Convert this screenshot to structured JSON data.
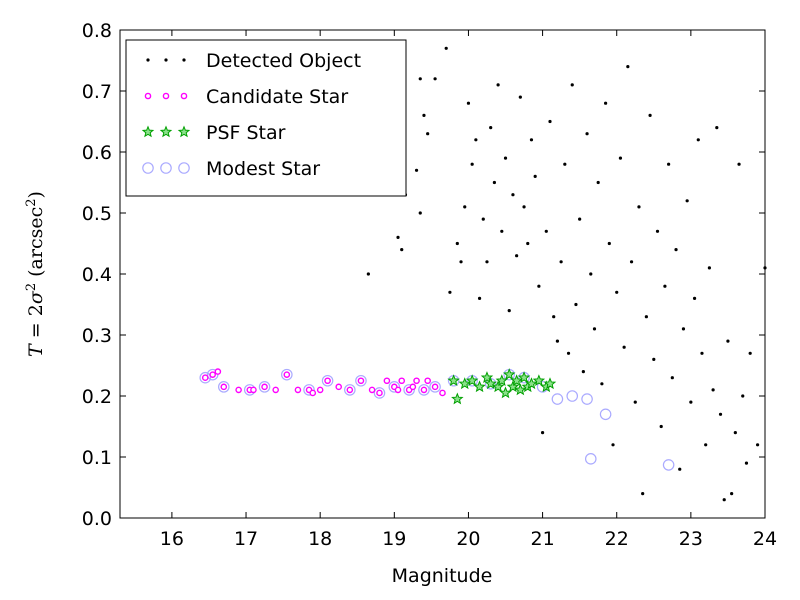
{
  "chart_data": {
    "type": "scatter",
    "xlabel": "Magnitude",
    "ylabel_parts": [
      "T",
      " = 2",
      "σ",
      "2",
      " (arcsec",
      "2",
      ")"
    ],
    "xlim": [
      15.3,
      24.0
    ],
    "ylim": [
      0.0,
      0.8
    ],
    "xticks": [
      16,
      17,
      18,
      19,
      20,
      21,
      22,
      23,
      24
    ],
    "yticks": [
      0.0,
      0.1,
      0.2,
      0.3,
      0.4,
      0.5,
      0.6,
      0.7,
      0.8
    ],
    "xtick_labels": [
      "16",
      "17",
      "18",
      "19",
      "20",
      "21",
      "22",
      "23",
      "24"
    ],
    "ytick_labels": [
      "0.0",
      "0.1",
      "0.2",
      "0.3",
      "0.4",
      "0.5",
      "0.6",
      "0.7",
      "0.8"
    ],
    "grid": false,
    "legend_position": "top-left",
    "series": [
      {
        "name": "Detected Object",
        "marker": "dot",
        "color": "#000000",
        "points": [
          [
            18.65,
            0.4
          ],
          [
            19.05,
            0.46
          ],
          [
            19.1,
            0.44
          ],
          [
            19.15,
            0.53
          ],
          [
            19.3,
            0.57
          ],
          [
            19.35,
            0.5
          ],
          [
            19.4,
            0.66
          ],
          [
            19.45,
            0.63
          ],
          [
            19.35,
            0.72
          ],
          [
            19.55,
            0.72
          ],
          [
            19.7,
            0.77
          ],
          [
            19.75,
            0.37
          ],
          [
            19.85,
            0.45
          ],
          [
            19.9,
            0.42
          ],
          [
            19.95,
            0.51
          ],
          [
            20.0,
            0.68
          ],
          [
            20.05,
            0.58
          ],
          [
            20.1,
            0.62
          ],
          [
            20.15,
            0.36
          ],
          [
            20.2,
            0.49
          ],
          [
            20.25,
            0.42
          ],
          [
            20.3,
            0.64
          ],
          [
            20.35,
            0.55
          ],
          [
            20.4,
            0.71
          ],
          [
            20.45,
            0.47
          ],
          [
            20.5,
            0.59
          ],
          [
            20.55,
            0.34
          ],
          [
            20.6,
            0.53
          ],
          [
            20.65,
            0.43
          ],
          [
            20.7,
            0.69
          ],
          [
            20.75,
            0.51
          ],
          [
            20.8,
            0.45
          ],
          [
            20.85,
            0.62
          ],
          [
            20.9,
            0.56
          ],
          [
            20.95,
            0.38
          ],
          [
            21.0,
            0.14
          ],
          [
            21.05,
            0.47
          ],
          [
            21.1,
            0.65
          ],
          [
            21.15,
            0.33
          ],
          [
            21.2,
            0.29
          ],
          [
            21.25,
            0.42
          ],
          [
            21.3,
            0.58
          ],
          [
            21.35,
            0.27
          ],
          [
            21.4,
            0.71
          ],
          [
            21.45,
            0.35
          ],
          [
            21.5,
            0.49
          ],
          [
            21.55,
            0.24
          ],
          [
            21.6,
            0.63
          ],
          [
            21.65,
            0.4
          ],
          [
            21.7,
            0.31
          ],
          [
            21.75,
            0.55
          ],
          [
            21.8,
            0.22
          ],
          [
            21.85,
            0.68
          ],
          [
            21.9,
            0.45
          ],
          [
            21.95,
            0.12
          ],
          [
            22.0,
            0.37
          ],
          [
            22.05,
            0.59
          ],
          [
            22.1,
            0.28
          ],
          [
            22.15,
            0.74
          ],
          [
            22.2,
            0.42
          ],
          [
            22.25,
            0.19
          ],
          [
            22.3,
            0.51
          ],
          [
            22.35,
            0.04
          ],
          [
            22.4,
            0.33
          ],
          [
            22.45,
            0.66
          ],
          [
            22.5,
            0.26
          ],
          [
            22.55,
            0.47
          ],
          [
            22.6,
            0.15
          ],
          [
            22.65,
            0.38
          ],
          [
            22.7,
            0.58
          ],
          [
            22.75,
            0.23
          ],
          [
            22.8,
            0.44
          ],
          [
            22.85,
            0.08
          ],
          [
            22.9,
            0.31
          ],
          [
            22.95,
            0.52
          ],
          [
            23.0,
            0.19
          ],
          [
            23.05,
            0.36
          ],
          [
            23.1,
            0.62
          ],
          [
            23.15,
            0.27
          ],
          [
            23.2,
            0.12
          ],
          [
            23.25,
            0.41
          ],
          [
            23.3,
            0.21
          ],
          [
            23.35,
            0.64
          ],
          [
            23.4,
            0.17
          ],
          [
            23.45,
            0.03
          ],
          [
            23.5,
            0.29
          ],
          [
            23.55,
            0.04
          ],
          [
            23.6,
            0.14
          ],
          [
            23.65,
            0.58
          ],
          [
            23.7,
            0.2
          ],
          [
            23.75,
            0.09
          ],
          [
            23.8,
            0.27
          ],
          [
            23.9,
            0.12
          ],
          [
            24.0,
            0.41
          ]
        ]
      },
      {
        "name": "Candidate Star",
        "marker": "circle",
        "color": "#ff00ff",
        "points": [
          [
            16.45,
            0.23
          ],
          [
            16.55,
            0.235
          ],
          [
            16.62,
            0.24
          ],
          [
            16.7,
            0.215
          ],
          [
            16.9,
            0.21
          ],
          [
            17.05,
            0.21
          ],
          [
            17.1,
            0.21
          ],
          [
            17.25,
            0.215
          ],
          [
            17.4,
            0.21
          ],
          [
            17.55,
            0.235
          ],
          [
            17.7,
            0.21
          ],
          [
            17.85,
            0.21
          ],
          [
            17.9,
            0.205
          ],
          [
            18.0,
            0.21
          ],
          [
            18.1,
            0.225
          ],
          [
            18.25,
            0.215
          ],
          [
            18.4,
            0.21
          ],
          [
            18.55,
            0.225
          ],
          [
            18.7,
            0.21
          ],
          [
            18.8,
            0.205
          ],
          [
            18.9,
            0.225
          ],
          [
            19.0,
            0.215
          ],
          [
            19.05,
            0.21
          ],
          [
            19.1,
            0.225
          ],
          [
            19.2,
            0.21
          ],
          [
            19.25,
            0.215
          ],
          [
            19.3,
            0.225
          ],
          [
            19.4,
            0.21
          ],
          [
            19.45,
            0.225
          ],
          [
            19.55,
            0.215
          ],
          [
            19.65,
            0.205
          ]
        ]
      },
      {
        "name": "PSF Star",
        "marker": "star",
        "color": "#00a000",
        "points": [
          [
            19.8,
            0.225
          ],
          [
            19.85,
            0.195
          ],
          [
            19.95,
            0.22
          ],
          [
            20.05,
            0.225
          ],
          [
            20.15,
            0.215
          ],
          [
            20.25,
            0.23
          ],
          [
            20.3,
            0.22
          ],
          [
            20.4,
            0.215
          ],
          [
            20.45,
            0.225
          ],
          [
            20.5,
            0.205
          ],
          [
            20.55,
            0.235
          ],
          [
            20.6,
            0.215
          ],
          [
            20.65,
            0.225
          ],
          [
            20.7,
            0.21
          ],
          [
            20.75,
            0.23
          ],
          [
            20.8,
            0.215
          ],
          [
            20.85,
            0.22
          ],
          [
            20.95,
            0.225
          ],
          [
            21.05,
            0.215
          ],
          [
            21.1,
            0.22
          ]
        ]
      },
      {
        "name": "Modest Star",
        "marker": "open-circle",
        "color": "#aaaaff",
        "points": [
          [
            16.45,
            0.23
          ],
          [
            16.55,
            0.235
          ],
          [
            16.7,
            0.215
          ],
          [
            17.05,
            0.21
          ],
          [
            17.25,
            0.215
          ],
          [
            17.55,
            0.235
          ],
          [
            17.85,
            0.21
          ],
          [
            18.1,
            0.225
          ],
          [
            18.4,
            0.21
          ],
          [
            18.55,
            0.225
          ],
          [
            18.8,
            0.205
          ],
          [
            19.0,
            0.215
          ],
          [
            19.2,
            0.21
          ],
          [
            19.4,
            0.21
          ],
          [
            19.55,
            0.215
          ],
          [
            19.8,
            0.225
          ],
          [
            20.05,
            0.225
          ],
          [
            20.3,
            0.22
          ],
          [
            20.55,
            0.235
          ],
          [
            20.75,
            0.23
          ],
          [
            21.0,
            0.215
          ],
          [
            21.2,
            0.195
          ],
          [
            21.4,
            0.2
          ],
          [
            21.6,
            0.195
          ],
          [
            21.65,
            0.097
          ],
          [
            21.85,
            0.17
          ],
          [
            22.7,
            0.087
          ]
        ]
      }
    ]
  }
}
